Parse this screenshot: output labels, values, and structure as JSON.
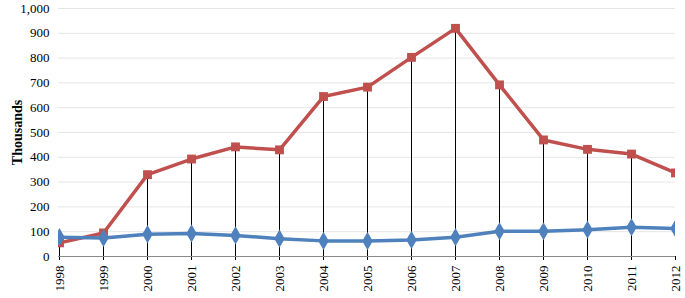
{
  "chart_data": {
    "type": "line",
    "y_label": "Thousands",
    "categories": [
      "1998",
      "1999",
      "2000",
      "2001",
      "2002",
      "2003",
      "2004",
      "2005",
      "2006",
      "2007",
      "2008",
      "2009",
      "2010",
      "2011",
      "2012"
    ],
    "series": [
      {
        "color": "#c0504d",
        "marker": "square",
        "values": [
          55,
          95,
          330,
          393,
          442,
          430,
          645,
          683,
          803,
          920,
          692,
          470,
          432,
          413,
          337
        ]
      },
      {
        "color": "#4f81bd",
        "marker": "diamond",
        "values": [
          78,
          75,
          90,
          93,
          85,
          72,
          63,
          62,
          67,
          78,
          102,
          102,
          108,
          118,
          113
        ]
      }
    ],
    "ylim": [
      0,
      1000
    ],
    "yticks": [
      0,
      100,
      200,
      300,
      400,
      500,
      600,
      700,
      800,
      900,
      1000
    ],
    "grid": true
  }
}
